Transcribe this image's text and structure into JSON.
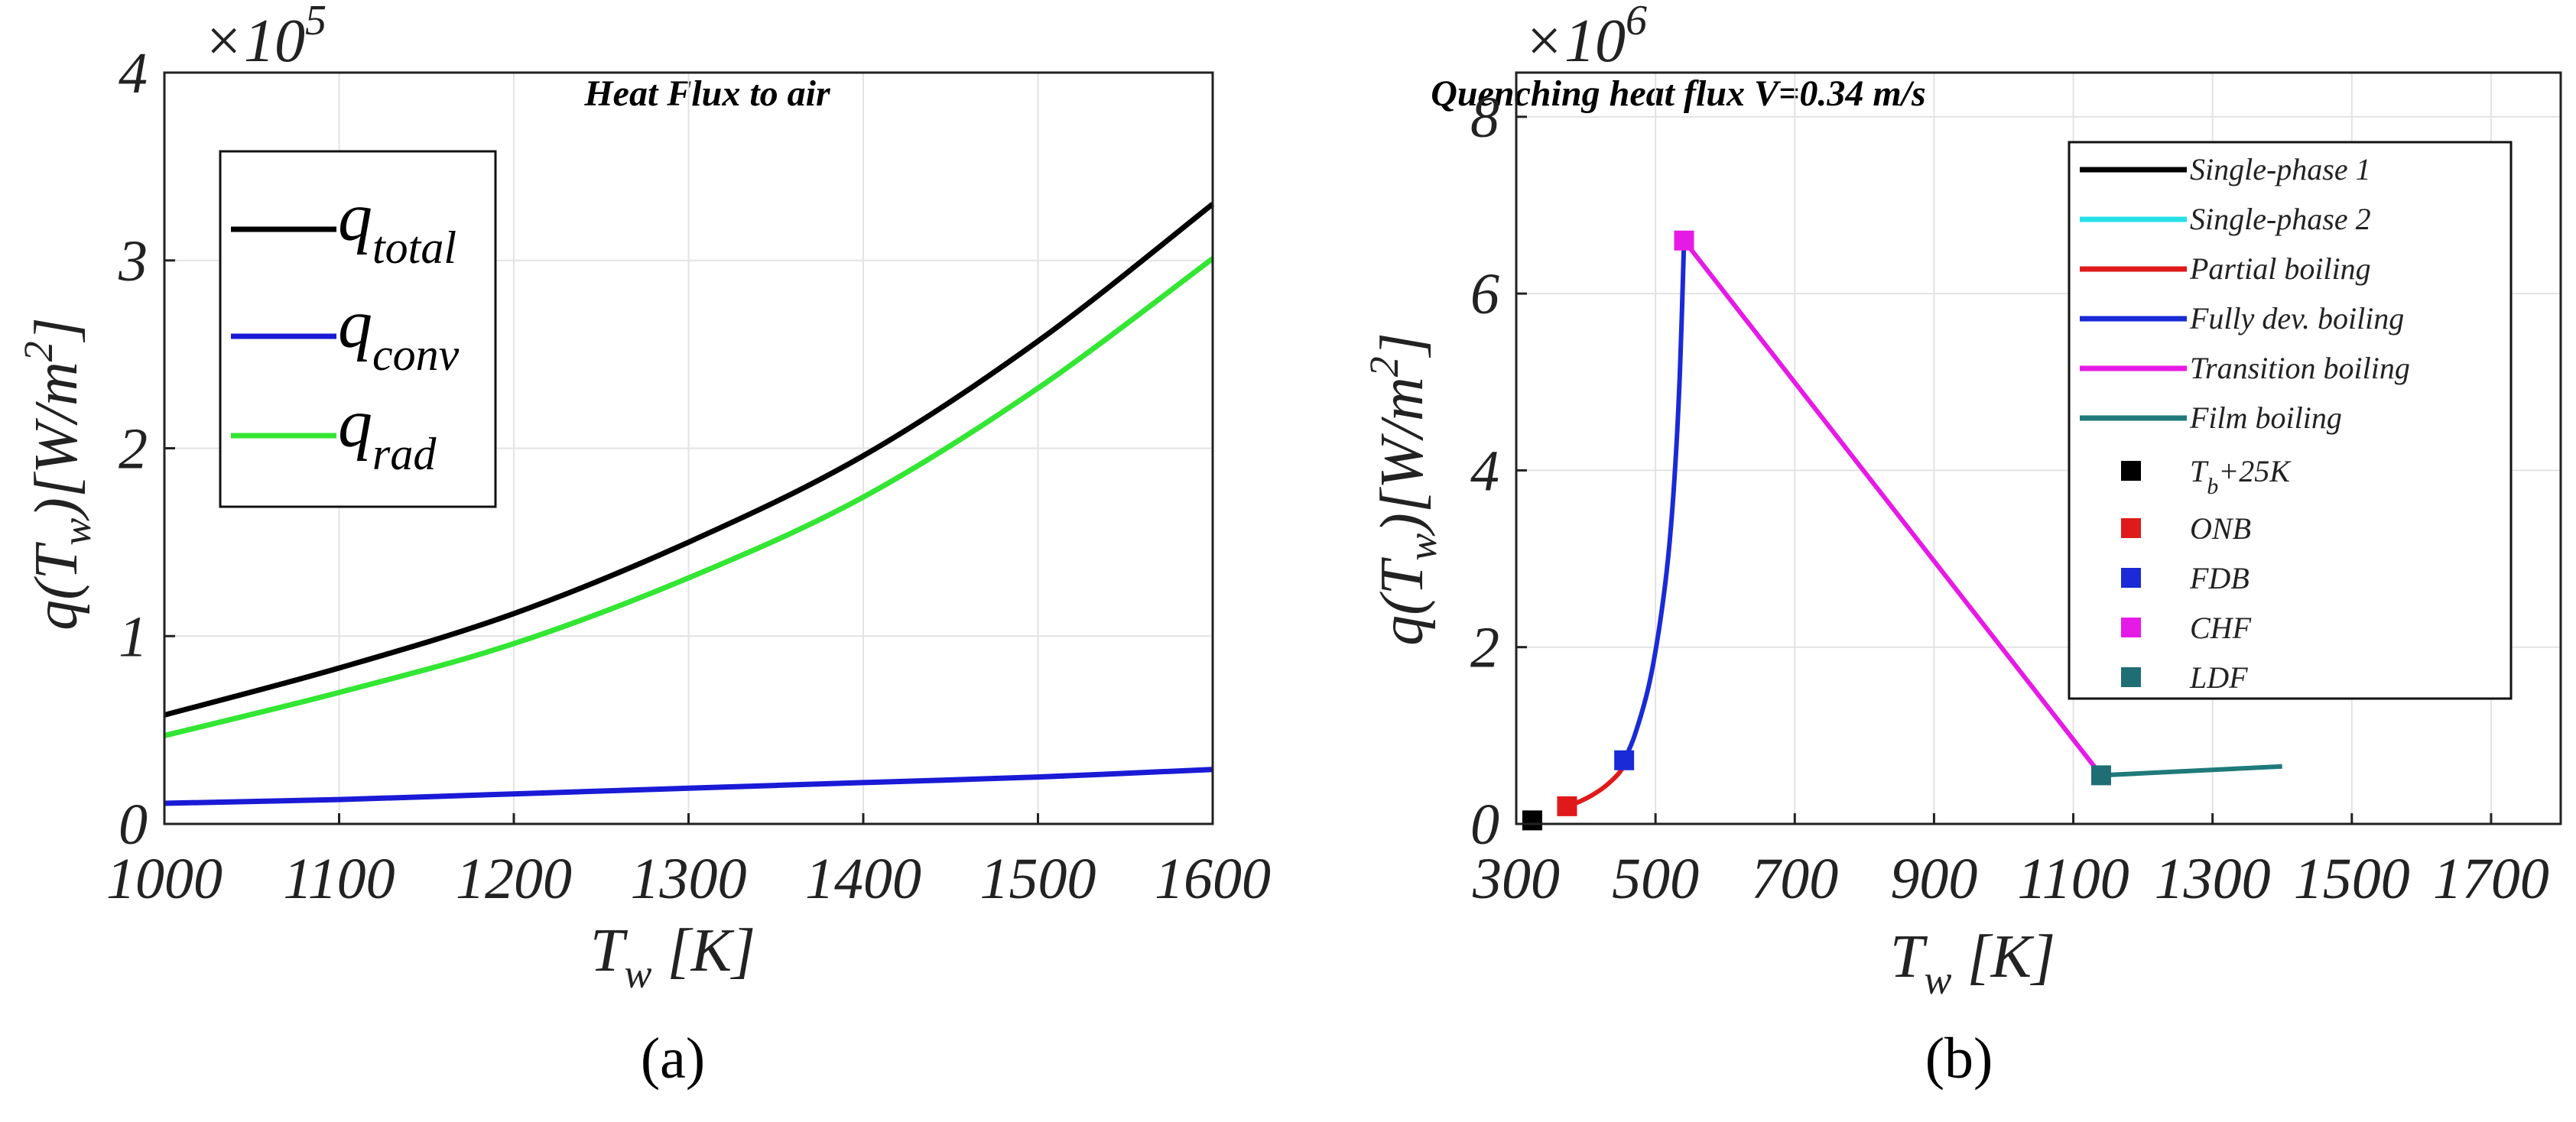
{
  "chart_data": [
    {
      "type": "line",
      "panel_label": "(a)",
      "title": "Heat Flux to air",
      "xlabel": "T_w [K]",
      "ylabel": "q(T_w)[W/m^2]",
      "y_multiplier": "×10^5",
      "xlim": [
        1000,
        1600
      ],
      "ylim": [
        0,
        4
      ],
      "xticks": [
        1000,
        1100,
        1200,
        1300,
        1400,
        1500,
        1600
      ],
      "yticks": [
        0,
        1,
        2,
        3,
        4
      ],
      "grid": true,
      "legend_position": "top-left",
      "series": [
        {
          "name": "q_total",
          "color": "#000000",
          "x": [
            1000,
            1100,
            1200,
            1300,
            1400,
            1500,
            1600
          ],
          "y": [
            0.58,
            0.83,
            1.12,
            1.5,
            1.96,
            2.57,
            3.3
          ]
        },
        {
          "name": "q_conv",
          "color": "#1a1ad6",
          "x": [
            1000,
            1100,
            1200,
            1300,
            1400,
            1500,
            1600
          ],
          "y": [
            0.11,
            0.13,
            0.16,
            0.19,
            0.22,
            0.25,
            0.29
          ]
        },
        {
          "name": "q_rad",
          "color": "#33e633",
          "x": [
            1000,
            1100,
            1200,
            1300,
            1400,
            1500,
            1600
          ],
          "y": [
            0.47,
            0.7,
            0.96,
            1.31,
            1.74,
            2.32,
            3.01
          ]
        }
      ],
      "legend": [
        {
          "base": "q",
          "sub": "total",
          "color": "#000000"
        },
        {
          "base": "q",
          "sub": "conv",
          "color": "#1a1ad6"
        },
        {
          "base": "q",
          "sub": "rad",
          "color": "#33e633"
        }
      ]
    },
    {
      "type": "line",
      "panel_label": "(b)",
      "title": "Quenching heat flux V=0.34 m/s",
      "xlabel": "T_w [K]",
      "ylabel": "q(T_w)[W/m^2]",
      "y_multiplier": "×10^6",
      "xlim": [
        300,
        1800
      ],
      "ylim": [
        0,
        8.5
      ],
      "xticks": [
        300,
        500,
        700,
        900,
        1100,
        1300,
        1500,
        1700
      ],
      "yticks": [
        0,
        2,
        4,
        6,
        8
      ],
      "grid": true,
      "legend_position": "top-right",
      "series": [
        {
          "name": "Single-phase 1",
          "color": "#000000",
          "x": [
            323,
            331
          ],
          "y": [
            0.04,
            0.05
          ]
        },
        {
          "name": "Single-phase 2",
          "color": "#26e0e8",
          "x": [
            331,
            333
          ],
          "y": [
            0.05,
            0.06
          ]
        },
        {
          "name": "Partial boiling",
          "color": "#e01a1a",
          "x": [
            373,
            390,
            410,
            430,
            450,
            455
          ],
          "y": [
            0.2,
            0.25,
            0.33,
            0.44,
            0.6,
            0.72
          ]
        },
        {
          "name": "Fully dev. boiling",
          "color": "#1a2ad6",
          "x": [
            455,
            470,
            490,
            505,
            518,
            528,
            535,
            541
          ],
          "y": [
            0.72,
            1.0,
            1.55,
            2.2,
            3.0,
            4.0,
            5.1,
            6.6
          ]
        },
        {
          "name": "Transition boiling",
          "color": "#e61ae6",
          "x": [
            541,
            1140
          ],
          "y": [
            6.6,
            0.55
          ]
        },
        {
          "name": "Film boiling",
          "color": "#1f7a7a",
          "x": [
            1140,
            1400
          ],
          "y": [
            0.55,
            0.65
          ]
        }
      ],
      "markers": [
        {
          "name": "T_b+25K",
          "base": "T",
          "sub": "b",
          "tail": "+25K",
          "color": "#000000",
          "x": 323,
          "y": 0.04
        },
        {
          "name": "ONB",
          "color": "#e01a1a",
          "x": 373,
          "y": 0.2
        },
        {
          "name": "FDB",
          "color": "#1a2ad6",
          "x": 455,
          "y": 0.72
        },
        {
          "name": "CHF",
          "color": "#e61ae6",
          "x": 541,
          "y": 6.6
        },
        {
          "name": "LDF",
          "color": "#1f6e74",
          "x": 1140,
          "y": 0.55
        }
      ]
    }
  ]
}
